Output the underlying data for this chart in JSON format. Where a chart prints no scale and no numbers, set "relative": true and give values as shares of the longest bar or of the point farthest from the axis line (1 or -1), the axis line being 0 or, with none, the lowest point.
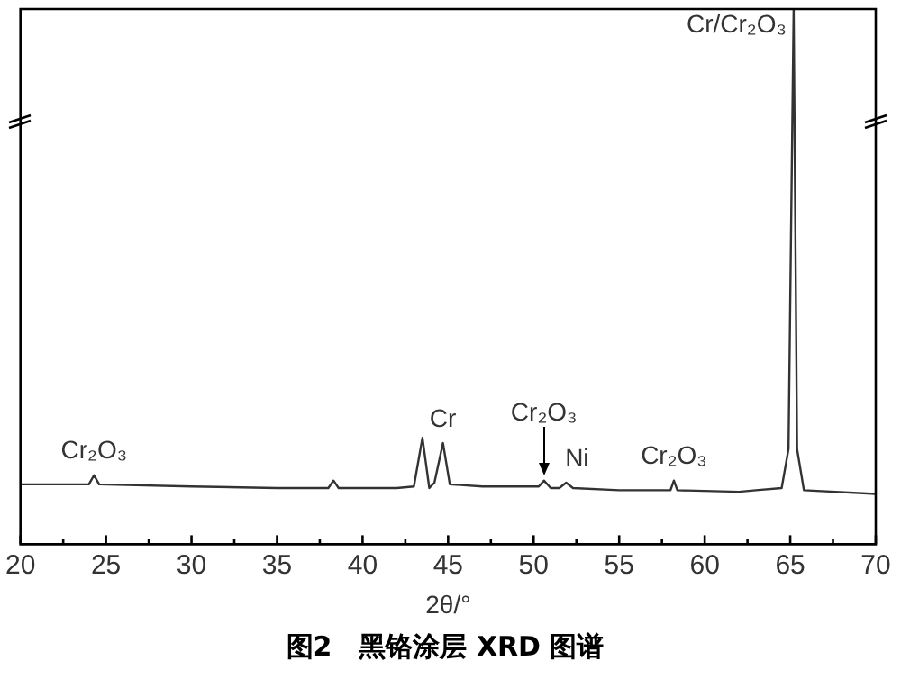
{
  "chart_data": {
    "type": "line",
    "relative": true,
    "title": "图2　黑铬涂层 XRD 图谱",
    "xlabel": "2θ/°",
    "x": [
      20,
      24.0,
      24.3,
      24.6,
      30,
      35,
      38.0,
      38.3,
      38.6,
      42,
      43.0,
      43.5,
      43.9,
      44.2,
      44.7,
      45.1,
      47,
      50.3,
      50.6,
      51.0,
      51.5,
      51.9,
      52.3,
      55,
      58.0,
      58.2,
      58.4,
      62,
      63,
      64.5,
      64.9,
      65.2,
      65.4,
      65.8,
      70
    ],
    "series": [
      {
        "color": "#333333",
        "values": [
          0.112,
          0.112,
          0.129,
          0.112,
          0.108,
          0.105,
          0.105,
          0.119,
          0.105,
          0.105,
          0.108,
          0.199,
          0.105,
          0.115,
          0.189,
          0.112,
          0.108,
          0.108,
          0.119,
          0.105,
          0.105,
          0.115,
          0.105,
          0.101,
          0.101,
          0.119,
          0.101,
          0.098,
          0.101,
          0.105,
          0.178,
          1,
          0.178,
          0.101,
          0.094
        ]
      }
    ],
    "xlim": [
      20,
      70
    ],
    "xticks": [
      20,
      {
        "value": 22.5,
        "label": null
      },
      25,
      {
        "value": 27.5,
        "label": null
      },
      30,
      {
        "value": 32.5,
        "label": null
      },
      35,
      {
        "value": 37.5,
        "label": null
      },
      40,
      {
        "value": 42.5,
        "label": null
      },
      45,
      {
        "value": 47.5,
        "label": null
      },
      50,
      {
        "value": 52.5,
        "label": null
      },
      55,
      {
        "value": 57.5,
        "label": null
      },
      60,
      {
        "value": 62.5,
        "label": null
      },
      65,
      {
        "value": 67.5,
        "label": null
      },
      70
    ],
    "annotations": [
      {
        "text": "Cr₂O₃",
        "x": 24.3,
        "y": 0.129
      },
      {
        "text": "Cr",
        "x": 44.7,
        "y": 0.189
      },
      {
        "text": "Cr₂O₃",
        "x": 50.6,
        "y": 0.119
      },
      {
        "text": "Ni",
        "x": 51.9,
        "y": 0.115
      },
      {
        "text": "Cr₂O₃",
        "x": 58.2,
        "y": 0.119
      },
      {
        "text": "Cr/Cr₂O₃",
        "x": 65.2,
        "y": 1
      }
    ],
    "grid": false,
    "legend": false,
    "marker": "none",
    "line_style": "solid"
  }
}
